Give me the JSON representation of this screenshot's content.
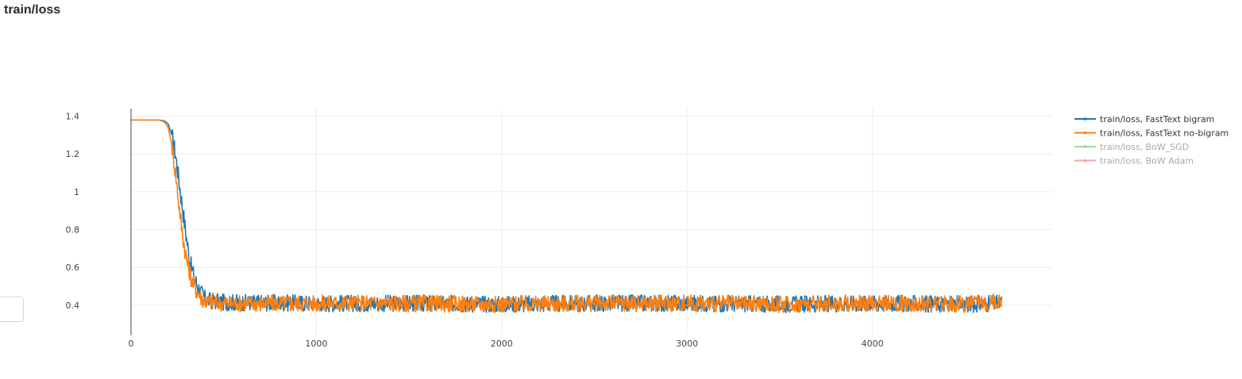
{
  "chart_data": {
    "type": "line",
    "title": "train/loss",
    "xlabel": "",
    "ylabel": "",
    "xlim": [
      0,
      4970
    ],
    "ylim": [
      0.24,
      1.44
    ],
    "x_ticks": [
      0,
      1000,
      2000,
      3000,
      4000
    ],
    "y_ticks": [
      0.4,
      0.6,
      0.8,
      1,
      1.2,
      1.4
    ],
    "grid": true,
    "legend_position": "top-right",
    "series": [
      {
        "name": "train/loss, FastText bigram",
        "color": "#1f77b4",
        "visible": true,
        "x": [
          0,
          150,
          180,
          200,
          220,
          240,
          260,
          280,
          300,
          320,
          340,
          360,
          380,
          400,
          450,
          500,
          1000,
          1500,
          2000,
          2500,
          3000,
          3500,
          4000,
          4500,
          4700
        ],
        "y": [
          1.38,
          1.38,
          1.375,
          1.36,
          1.3,
          1.2,
          1.05,
          0.9,
          0.75,
          0.62,
          0.55,
          0.5,
          0.46,
          0.43,
          0.42,
          0.415,
          0.41,
          0.41,
          0.405,
          0.41,
          0.41,
          0.405,
          0.41,
          0.405,
          0.41
        ]
      },
      {
        "name": "train/loss, FastText no-bigram",
        "color": "#ff7f0e",
        "visible": true,
        "x": [
          0,
          150,
          180,
          200,
          220,
          240,
          260,
          280,
          300,
          320,
          340,
          360,
          380,
          400,
          450,
          500,
          1000,
          1500,
          2000,
          2500,
          3000,
          3500,
          4000,
          4500,
          4700
        ],
        "y": [
          1.38,
          1.38,
          1.37,
          1.34,
          1.25,
          1.1,
          0.92,
          0.76,
          0.64,
          0.56,
          0.5,
          0.47,
          0.44,
          0.42,
          0.415,
          0.41,
          0.41,
          0.41,
          0.405,
          0.41,
          0.41,
          0.405,
          0.41,
          0.405,
          0.42
        ]
      },
      {
        "name": "train/loss, BoW_SGD",
        "color": "#98d898",
        "visible": false,
        "x": [],
        "y": []
      },
      {
        "name": "train/loss, BoW Adam",
        "color": "#f59d9d",
        "visible": false,
        "x": [],
        "y": []
      }
    ]
  }
}
